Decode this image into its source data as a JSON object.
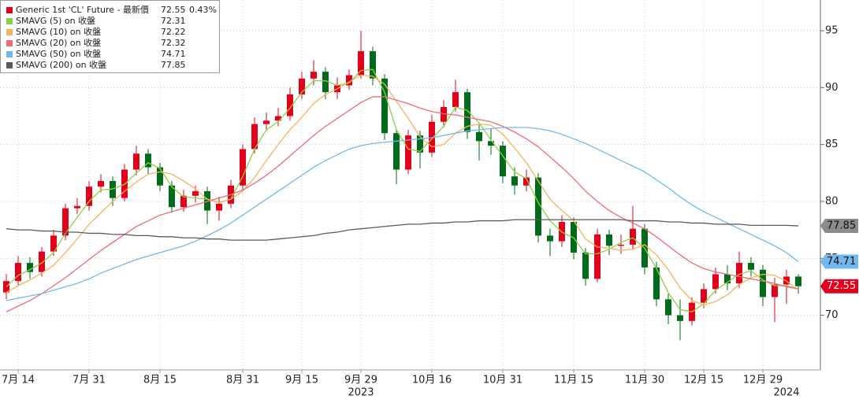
{
  "chart_data": {
    "type": "candlestick",
    "categories": [
      null,
      "7月 14",
      null,
      null,
      null,
      null,
      null,
      "7月 31",
      null,
      null,
      null,
      null,
      null,
      "8月 15",
      null,
      null,
      null,
      null,
      null,
      null,
      "8月 31",
      null,
      null,
      null,
      null,
      "9月 15",
      null,
      null,
      null,
      null,
      "9月 29",
      null,
      null,
      null,
      null,
      null,
      "10月 16",
      null,
      null,
      null,
      null,
      null,
      "10月 31",
      null,
      null,
      null,
      null,
      null,
      "11月 15",
      null,
      null,
      null,
      null,
      null,
      "11月 30",
      null,
      null,
      null,
      null,
      "12月 15",
      null,
      null,
      null,
      null,
      "12月 29",
      null,
      null,
      null
    ],
    "years": [
      null,
      null,
      null,
      null,
      null,
      null,
      null,
      null,
      null,
      null,
      null,
      null,
      null,
      null,
      null,
      null,
      null,
      null,
      null,
      null,
      null,
      null,
      null,
      null,
      null,
      null,
      null,
      null,
      null,
      null,
      "2023",
      null,
      null,
      null,
      null,
      null,
      null,
      null,
      null,
      null,
      null,
      null,
      null,
      null,
      null,
      null,
      null,
      null,
      null,
      null,
      null,
      null,
      null,
      null,
      null,
      null,
      null,
      null,
      null,
      null,
      null,
      null,
      null,
      null,
      null,
      null,
      "2024",
      null
    ],
    "candles": {
      "name": "Generic 1st 'CL' Future - 最新價",
      "change": "0.43%",
      "up_color": "#e3001b",
      "down_color": "#006b1a",
      "open": [
        72.0,
        73.0,
        74.6,
        73.8,
        75.6,
        77.0,
        79.4,
        79.6,
        81.3,
        81.8,
        80.3,
        82.8,
        84.2,
        83.0,
        81.4,
        79.5,
        80.5,
        80.9,
        79.2,
        79.8,
        81.4,
        84.6,
        86.8,
        87.1,
        87.5,
        89.4,
        90.8,
        91.4,
        89.6,
        90.2,
        91.1,
        93.2,
        90.8,
        86.0,
        82.8,
        85.8,
        84.3,
        87.0,
        88.3,
        89.6,
        86.1,
        85.3,
        84.9,
        82.2,
        81.4,
        82.1,
        77.0,
        76.5,
        78.2,
        75.5,
        73.2,
        77.1,
        76.1,
        76.2,
        77.6,
        74.2,
        71.4,
        70.0,
        69.5,
        71.1,
        72.3,
        73.6,
        72.8,
        74.6,
        74.0,
        71.6,
        72.7,
        73.4
      ],
      "high": [
        73.6,
        75.2,
        75.1,
        76.0,
        77.5,
        79.8,
        80.3,
        81.8,
        82.4,
        82.2,
        83.3,
        84.9,
        84.6,
        83.4,
        81.8,
        81.0,
        81.4,
        81.3,
        80.4,
        81.9,
        85.0,
        87.4,
        87.8,
        88.2,
        90.0,
        91.4,
        92.4,
        91.8,
        90.9,
        91.6,
        95.0,
        93.6,
        91.2,
        86.4,
        86.3,
        86.2,
        87.6,
        88.9,
        90.7,
        89.9,
        86.9,
        86.4,
        85.3,
        83.0,
        82.8,
        82.5,
        77.6,
        78.8,
        78.6,
        75.9,
        77.6,
        77.5,
        77.1,
        79.6,
        78.0,
        74.7,
        71.9,
        71.4,
        71.6,
        72.8,
        74.2,
        74.4,
        75.6,
        75.1,
        74.4,
        73.3,
        74.0,
        73.6
      ],
      "low": [
        71.4,
        72.6,
        73.2,
        73.4,
        75.2,
        76.6,
        78.9,
        79.2,
        80.8,
        79.6,
        80.0,
        82.3,
        82.4,
        80.9,
        79.0,
        79.1,
        79.9,
        78.0,
        78.3,
        79.4,
        81.0,
        84.2,
        86.2,
        86.6,
        87.1,
        89.0,
        90.2,
        89.0,
        89.0,
        89.8,
        90.8,
        90.2,
        85.4,
        81.5,
        82.4,
        82.9,
        83.9,
        86.5,
        87.9,
        85.5,
        83.6,
        84.1,
        81.6,
        80.6,
        80.9,
        76.4,
        75.2,
        76.0,
        74.9,
        72.6,
        72.9,
        75.3,
        75.4,
        75.8,
        73.6,
        70.8,
        69.2,
        67.8,
        69.1,
        70.6,
        71.9,
        72.2,
        72.4,
        73.4,
        70.8,
        69.4,
        71.0,
        71.9
      ],
      "close": [
        73.0,
        74.6,
        73.8,
        75.6,
        77.0,
        79.4,
        79.6,
        81.3,
        81.8,
        80.3,
        82.8,
        84.2,
        83.0,
        81.4,
        79.5,
        80.5,
        80.9,
        79.2,
        79.8,
        81.4,
        84.6,
        86.8,
        87.1,
        87.5,
        89.4,
        90.8,
        91.4,
        89.6,
        90.2,
        91.1,
        93.2,
        90.8,
        86.0,
        82.8,
        85.8,
        84.3,
        87.0,
        88.3,
        89.6,
        86.1,
        85.3,
        84.9,
        82.2,
        81.4,
        82.1,
        77.0,
        76.5,
        78.2,
        75.5,
        73.2,
        77.1,
        76.1,
        76.2,
        77.6,
        74.2,
        71.4,
        70.0,
        69.5,
        71.1,
        72.3,
        73.6,
        72.8,
        74.6,
        74.0,
        71.6,
        72.7,
        73.4,
        72.55
      ]
    },
    "series": [
      {
        "name": "SMAVG (5)  on 收盤",
        "color": "#8bd145",
        "values": [
          72.5,
          73.5,
          74.0,
          74.6,
          75.5,
          77.2,
          78.6,
          80.0,
          81.0,
          81.1,
          81.5,
          82.5,
          83.4,
          82.9,
          81.3,
          80.4,
          80.3,
          80.2,
          79.9,
          80.2,
          82.2,
          84.6,
          86.3,
          87.0,
          88.2,
          89.6,
          90.6,
          90.6,
          90.2,
          90.4,
          91.5,
          91.6,
          89.6,
          86.3,
          84.6,
          84.4,
          85.5,
          86.6,
          88.3,
          88.0,
          86.9,
          85.4,
          84.0,
          82.6,
          82.0,
          79.9,
          78.3,
          77.3,
          76.8,
          75.4,
          75.4,
          75.8,
          76.4,
          76.8,
          75.9,
          74.1,
          72.0,
          70.5,
          70.3,
          71.0,
          72.2,
          72.9,
          73.6,
          73.9,
          73.1,
          72.6,
          72.6,
          72.31
        ]
      },
      {
        "name": "SMAVG (10)  on 收盤",
        "color": "#f7b25a",
        "values": [
          72.0,
          72.6,
          73.1,
          73.7,
          74.4,
          75.5,
          76.7,
          78.0,
          79.0,
          80.0,
          80.9,
          81.7,
          82.4,
          82.6,
          82.4,
          81.8,
          81.1,
          80.2,
          79.9,
          80.2,
          80.9,
          82.1,
          83.6,
          85.0,
          86.3,
          87.4,
          88.6,
          89.4,
          89.9,
          90.5,
          91.1,
          91.0,
          90.3,
          88.8,
          87.3,
          85.7,
          84.8,
          85.0,
          86.0,
          86.6,
          86.8,
          86.7,
          85.9,
          84.7,
          83.4,
          81.8,
          80.2,
          79.2,
          78.3,
          76.7,
          76.0,
          75.9,
          75.7,
          75.8,
          76.2,
          75.3,
          74.0,
          72.4,
          71.3,
          70.9,
          71.2,
          71.8,
          72.7,
          73.3,
          73.6,
          73.5,
          73.0,
          72.22
        ]
      },
      {
        "name": "SMAVG (20)  on 收盤",
        "color": "#f06a77",
        "values": [
          70.3,
          70.8,
          71.3,
          71.9,
          72.6,
          73.3,
          74.1,
          74.9,
          75.7,
          76.4,
          77.1,
          77.8,
          78.3,
          78.8,
          79.1,
          79.4,
          79.7,
          80.0,
          80.3,
          80.6,
          81.0,
          81.6,
          82.3,
          83.1,
          84.0,
          84.9,
          85.8,
          86.6,
          87.3,
          88.0,
          88.7,
          89.2,
          89.2,
          88.9,
          88.6,
          88.2,
          87.9,
          87.7,
          87.6,
          87.4,
          87.2,
          87.0,
          86.6,
          86.1,
          85.5,
          84.8,
          83.9,
          83.0,
          82.0,
          80.9,
          80.0,
          79.2,
          78.6,
          78.1,
          77.6,
          76.9,
          76.1,
          75.3,
          74.6,
          74.1,
          73.8,
          73.6,
          73.4,
          73.2,
          73.0,
          72.8,
          72.5,
          72.32
        ]
      },
      {
        "name": "SMAVG (50)  on 收盤",
        "color": "#72b8ef",
        "values": [
          71.3,
          71.5,
          71.7,
          71.9,
          72.2,
          72.5,
          72.8,
          73.2,
          73.7,
          74.1,
          74.5,
          74.9,
          75.2,
          75.5,
          75.8,
          76.1,
          76.5,
          77.0,
          77.5,
          78.1,
          78.8,
          79.5,
          80.2,
          80.9,
          81.6,
          82.3,
          83.0,
          83.6,
          84.1,
          84.6,
          84.9,
          85.1,
          85.2,
          85.3,
          85.4,
          85.5,
          85.6,
          85.8,
          86.0,
          86.2,
          86.3,
          86.4,
          86.5,
          86.5,
          86.5,
          86.4,
          86.2,
          85.9,
          85.5,
          85.1,
          84.6,
          84.1,
          83.6,
          83.1,
          82.6,
          81.9,
          81.2,
          80.4,
          79.7,
          79.1,
          78.6,
          78.1,
          77.6,
          77.1,
          76.6,
          76.1,
          75.5,
          74.71
        ]
      },
      {
        "name": "SMAVG (200)  on 收盤",
        "color": "#5a5a5a",
        "values": [
          77.6,
          77.5,
          77.5,
          77.4,
          77.4,
          77.3,
          77.3,
          77.2,
          77.2,
          77.1,
          77.1,
          77.0,
          77.0,
          76.9,
          76.9,
          76.8,
          76.8,
          76.7,
          76.7,
          76.6,
          76.6,
          76.6,
          76.6,
          76.7,
          76.8,
          76.9,
          77.0,
          77.2,
          77.3,
          77.5,
          77.6,
          77.7,
          77.8,
          77.9,
          78.0,
          78.0,
          78.1,
          78.1,
          78.2,
          78.2,
          78.3,
          78.3,
          78.3,
          78.4,
          78.4,
          78.4,
          78.4,
          78.4,
          78.4,
          78.4,
          78.4,
          78.4,
          78.4,
          78.3,
          78.3,
          78.3,
          78.2,
          78.2,
          78.1,
          78.1,
          78.0,
          78.0,
          78.0,
          77.9,
          77.9,
          77.9,
          77.9,
          77.85
        ]
      }
    ],
    "ylim": [
      65.2,
      97.7
    ],
    "yticks": [
      70,
      75,
      80,
      85,
      90,
      95
    ],
    "grid": true
  }
}
